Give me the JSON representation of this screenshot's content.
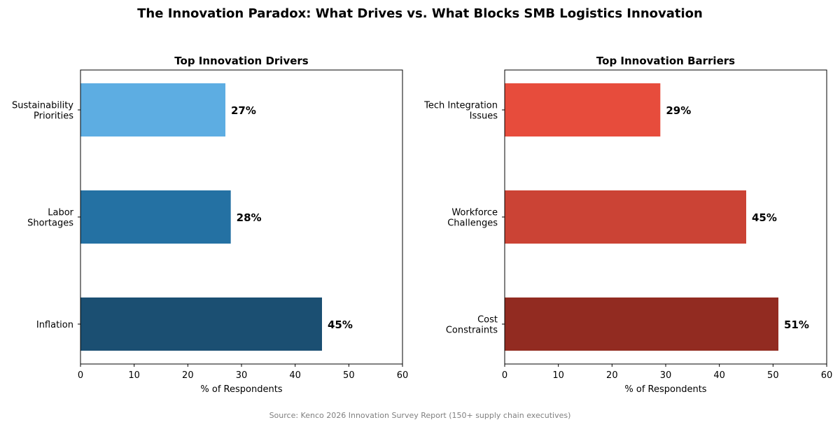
{
  "title": "The Innovation Paradox: What Drives vs. What Blocks SMB Logistics Innovation",
  "source": "Source: Kenco 2026 Innovation Survey Report (150+ supply chain executives)",
  "chart_data": [
    {
      "type": "bar",
      "orientation": "horizontal",
      "title": "Top Innovation Drivers",
      "xlabel": "% of Respondents",
      "xlim": [
        0,
        60
      ],
      "xticks": [
        0,
        10,
        20,
        30,
        40,
        50,
        60
      ],
      "categories": [
        [
          "Sustainability",
          "Priorities"
        ],
        [
          "Labor",
          "Shortages"
        ],
        [
          "Inflation"
        ]
      ],
      "values": [
        27,
        28,
        45
      ],
      "data_labels": [
        "27%",
        "28%",
        "45%"
      ],
      "colors": [
        "#5DADE2",
        "#2471A3",
        "#1B4F72"
      ]
    },
    {
      "type": "bar",
      "orientation": "horizontal",
      "title": "Top Innovation Barriers",
      "xlabel": "% of Respondents",
      "xlim": [
        0,
        60
      ],
      "xticks": [
        0,
        10,
        20,
        30,
        40,
        50,
        60
      ],
      "categories": [
        [
          "Tech Integration",
          "Issues"
        ],
        [
          "Workforce",
          "Challenges"
        ],
        [
          "Cost",
          "Constraints"
        ]
      ],
      "values": [
        29,
        45,
        51
      ],
      "data_labels": [
        "29%",
        "45%",
        "51%"
      ],
      "colors": [
        "#E74C3C",
        "#CB4335",
        "#922B21"
      ]
    }
  ]
}
